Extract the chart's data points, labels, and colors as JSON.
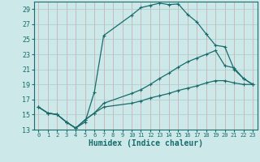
{
  "xlabel": "Humidex (Indice chaleur)",
  "bg_color": "#cce8e8",
  "grid_color": "#aacccc",
  "line_color": "#1a6b6b",
  "xlim": [
    -0.5,
    23.5
  ],
  "ylim": [
    13,
    30
  ],
  "yticks": [
    13,
    15,
    17,
    19,
    21,
    23,
    25,
    27,
    29
  ],
  "xticks": [
    0,
    1,
    2,
    3,
    4,
    5,
    6,
    7,
    8,
    9,
    10,
    11,
    12,
    13,
    14,
    15,
    16,
    17,
    18,
    19,
    20,
    21,
    22,
    23
  ],
  "series": [
    {
      "x": [
        0,
        1,
        2,
        3,
        4,
        5,
        6,
        7,
        10,
        11,
        12,
        13,
        14,
        15,
        16,
        17,
        18,
        19,
        20,
        21,
        22,
        23
      ],
      "y": [
        16,
        15.2,
        15,
        14,
        13.2,
        14,
        18,
        25.5,
        28.2,
        29.2,
        29.5,
        29.8,
        29.6,
        29.7,
        28.3,
        27.3,
        25.7,
        24.2,
        24,
        21,
        19.8,
        19
      ]
    },
    {
      "x": [
        0,
        1,
        2,
        3,
        4,
        5,
        6,
        7,
        10,
        11,
        12,
        13,
        14,
        15,
        16,
        17,
        18,
        19,
        20,
        21,
        22,
        23
      ],
      "y": [
        16,
        15.2,
        15,
        14,
        13.2,
        14.3,
        15.2,
        16.5,
        17.8,
        18.3,
        19.0,
        19.8,
        20.5,
        21.3,
        22,
        22.5,
        23,
        23.5,
        21.5,
        21.2,
        19.8,
        19
      ]
    },
    {
      "x": [
        0,
        1,
        2,
        3,
        4,
        5,
        6,
        7,
        10,
        11,
        12,
        13,
        14,
        15,
        16,
        17,
        18,
        19,
        20,
        21,
        22,
        23
      ],
      "y": [
        16,
        15.2,
        15,
        14,
        13.2,
        14.3,
        15.2,
        16,
        16.5,
        16.8,
        17.2,
        17.5,
        17.8,
        18.2,
        18.5,
        18.8,
        19.2,
        19.5,
        19.5,
        19.2,
        19,
        19
      ]
    }
  ]
}
